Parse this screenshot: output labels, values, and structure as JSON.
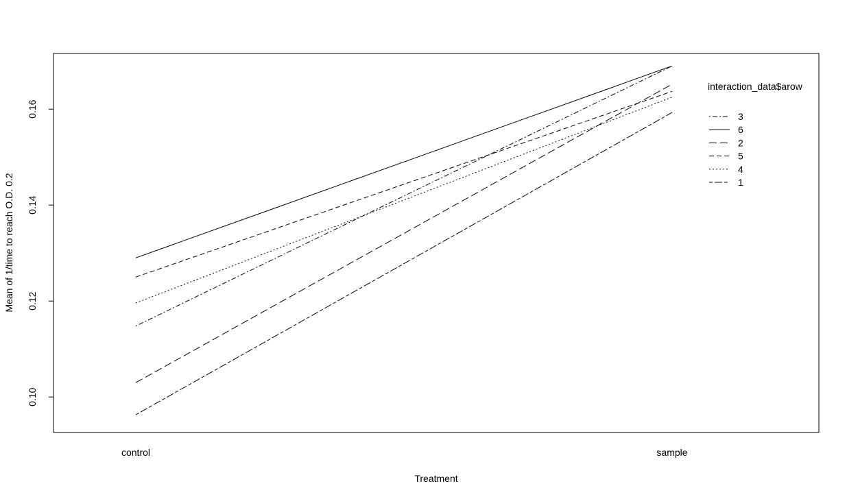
{
  "chart_data": {
    "type": "line",
    "title": "",
    "xlabel": "Treatment",
    "ylabel": "Mean of 1/time to reach O.D. 0.2",
    "categories": [
      "control",
      "sample"
    ],
    "ylim": [
      0.0926,
      0.1716
    ],
    "yticks": [
      0.1,
      0.12,
      0.14,
      0.16
    ],
    "ytick_labels": [
      "0.10",
      "0.12",
      "0.14",
      "0.16"
    ],
    "grid": false,
    "legend": {
      "title": "interaction_data$arow",
      "placement": "top-right",
      "order": [
        "3",
        "6",
        "2",
        "5",
        "4",
        "1"
      ]
    },
    "series": [
      {
        "name": "3",
        "values": [
          0.1148,
          0.169
        ],
        "dash": "dotdash"
      },
      {
        "name": "6",
        "values": [
          0.129,
          0.169
        ],
        "dash": "solid"
      },
      {
        "name": "2",
        "values": [
          0.103,
          0.1652
        ],
        "dash": "longdash"
      },
      {
        "name": "5",
        "values": [
          0.125,
          0.1637
        ],
        "dash": "dashed"
      },
      {
        "name": "4",
        "values": [
          0.1196,
          0.1625
        ],
        "dash": "dotted"
      },
      {
        "name": "1",
        "values": [
          0.0963,
          0.1593
        ],
        "dash": "twodash"
      }
    ]
  }
}
